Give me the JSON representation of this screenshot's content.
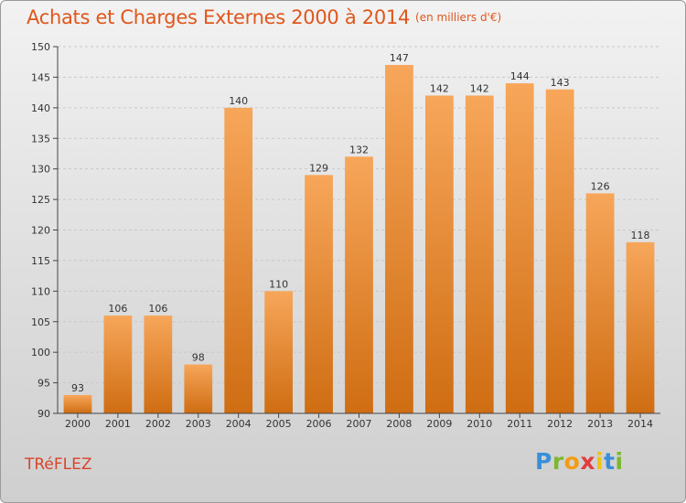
{
  "header": {
    "title": "Achats et Charges Externes 2000 à 2014",
    "unit": "(en milliers d'€)"
  },
  "footer": {
    "commune": "TRéFLEZ",
    "logo": [
      "P",
      "r",
      "o",
      "x",
      "i",
      "t",
      "i"
    ]
  },
  "colors": {
    "title": "#e0561b",
    "bar_top": "#f7a65a",
    "bar_bottom": "#cf6d12",
    "grid": "#c8c8c8",
    "commune": "#d8442a",
    "logo": [
      "#3a8fd8",
      "#7cb82f",
      "#f39c12",
      "#e23d3d",
      "#f1c40f",
      "#3a8fd8",
      "#7cb82f"
    ]
  },
  "chart_data": {
    "type": "bar",
    "title": "Achats et Charges Externes 2000 à 2014",
    "subtitle": "(en milliers d'€)",
    "categories": [
      "2000",
      "2001",
      "2002",
      "2003",
      "2004",
      "2005",
      "2006",
      "2007",
      "2008",
      "2009",
      "2010",
      "2011",
      "2012",
      "2013",
      "2014"
    ],
    "values": [
      93,
      106,
      106,
      98,
      140,
      110,
      129,
      132,
      147,
      142,
      142,
      144,
      143,
      126,
      118
    ],
    "ylim": [
      90,
      150
    ],
    "yticks": [
      90,
      95,
      100,
      105,
      110,
      115,
      120,
      125,
      130,
      135,
      140,
      145,
      150
    ],
    "grid": "horizontal dashed",
    "data_labels": true
  }
}
